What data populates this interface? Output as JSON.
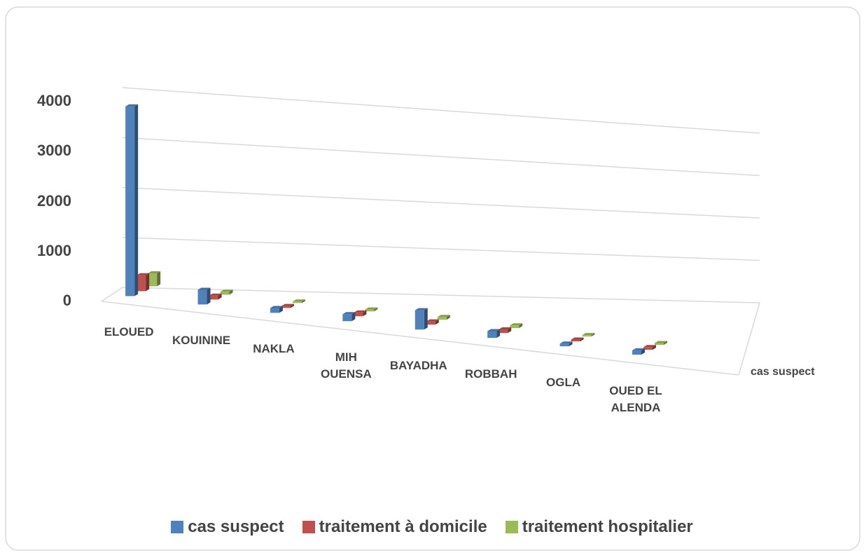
{
  "chart_data": {
    "type": "bar3d",
    "categories": [
      "ELOUED",
      "KOUININE",
      "NAKLA",
      "MIH OUENSA",
      "BAYADHA",
      "ROBBAH",
      "OGLA",
      "OUED EL ALENDA"
    ],
    "series": [
      {
        "name": "cas suspect",
        "color": "#4f81bd",
        "values": [
          3800,
          300,
          100,
          150,
          420,
          150,
          60,
          100
        ]
      },
      {
        "name": "traitement à domicile",
        "color": "#c0504d",
        "values": [
          320,
          80,
          40,
          80,
          70,
          80,
          40,
          60
        ]
      },
      {
        "name": "traitement hospitalier",
        "color": "#9bbb59",
        "values": [
          260,
          60,
          30,
          40,
          60,
          60,
          30,
          40
        ]
      }
    ],
    "z_label": "cas suspect",
    "ylim": [
      0,
      4000
    ],
    "yticks": [
      0,
      1000,
      2000,
      3000,
      4000
    ],
    "grid": true
  }
}
